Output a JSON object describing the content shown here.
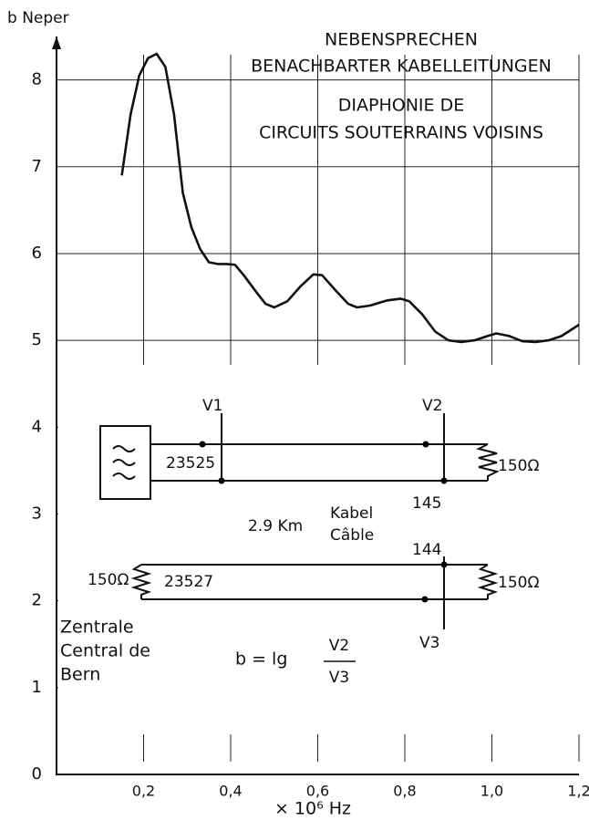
{
  "chart_data": {
    "type": "line",
    "title_lines": [
      "NEBENSPRECHEN",
      "BENACHBARTER KABELLEITUNGEN",
      "DIAPHONIE DE",
      "CIRCUITS SOUTERRAINS VOISINS"
    ],
    "y_label": "b Neper",
    "x_label": "× 10⁶ Hz",
    "x": [
      0.15,
      0.17,
      0.19,
      0.21,
      0.23,
      0.25,
      0.27,
      0.29,
      0.31,
      0.33,
      0.35,
      0.37,
      0.39,
      0.41,
      0.43,
      0.46,
      0.48,
      0.5,
      0.53,
      0.56,
      0.59,
      0.61,
      0.64,
      0.67,
      0.69,
      0.72,
      0.76,
      0.79,
      0.81,
      0.84,
      0.87,
      0.9,
      0.93,
      0.96,
      0.99,
      1.01,
      1.04,
      1.07,
      1.1,
      1.13,
      1.16,
      1.2
    ],
    "values": [
      6.9,
      7.6,
      8.05,
      8.25,
      8.3,
      8.15,
      7.6,
      6.7,
      6.3,
      6.05,
      5.9,
      5.88,
      5.88,
      5.87,
      5.75,
      5.55,
      5.42,
      5.38,
      5.45,
      5.62,
      5.76,
      5.75,
      5.58,
      5.42,
      5.38,
      5.4,
      5.46,
      5.48,
      5.45,
      5.3,
      5.1,
      5.0,
      4.98,
      5.0,
      5.05,
      5.08,
      5.05,
      4.99,
      4.98,
      5.0,
      5.05,
      5.18
    ],
    "color": "#111111",
    "xlim": [
      0,
      1.2
    ],
    "ylim": [
      0,
      8.5
    ],
    "xticks": [
      {
        "value": 0.2,
        "label": "0,2"
      },
      {
        "value": 0.4,
        "label": "0,4"
      },
      {
        "value": 0.6,
        "label": "0,6"
      },
      {
        "value": 0.8,
        "label": "0,8"
      },
      {
        "value": 1.0,
        "label": "1,0"
      },
      {
        "value": 1.2,
        "label": "1,2"
      }
    ],
    "yticks": [
      0,
      1,
      2,
      3,
      4,
      5,
      6,
      7,
      8
    ],
    "grid": true,
    "diagram": {
      "v1": "V1",
      "v2": "V2",
      "v3": "V3",
      "line1": "23525",
      "line2": "23527",
      "r1": "150Ω",
      "r2": "150Ω",
      "r3": "150Ω",
      "n145": "145",
      "n144": "144",
      "length": "2.9 Km",
      "kabel": "Kabel",
      "cable": "Câble",
      "place": [
        "Zentrale",
        "Central de",
        "Bern"
      ],
      "formula": "b = lg",
      "num": "V2",
      "den": "V3"
    }
  }
}
